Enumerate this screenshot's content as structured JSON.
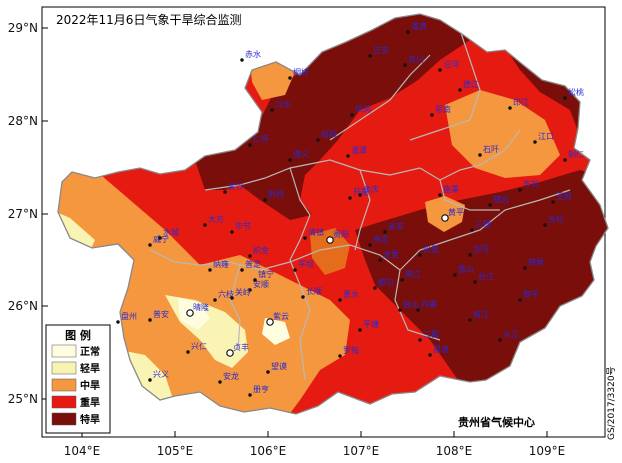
{
  "title": "2022年11月6日气象干旱综合监测",
  "colors": {
    "normal": "#fffde0",
    "light": "#f9f4b4",
    "moderate": "#f5973f",
    "severe": "#e51b12",
    "extreme": "#7a0e0a",
    "orange_dark": "#e56c1a",
    "border": "#b8b8b8",
    "city": "#2a2ad0"
  },
  "lat_labels": [
    "29°N",
    "28°N",
    "27°N",
    "26°N",
    "25°N"
  ],
  "lon_labels": [
    "104°E",
    "105°E",
    "106°E",
    "107°E",
    "108°E",
    "109°E"
  ],
  "legend": {
    "title": "图  例",
    "items": [
      {
        "label": "正常",
        "key": "normal"
      },
      {
        "label": "轻旱",
        "key": "light"
      },
      {
        "label": "中旱",
        "key": "moderate"
      },
      {
        "label": "重旱",
        "key": "severe"
      },
      {
        "label": "特旱",
        "key": "extreme"
      }
    ]
  },
  "credit": "贵州省气候中心",
  "approval_number": "GS/2017/3320号",
  "cities": [
    {
      "name": "赤水"
    },
    {
      "name": "桐梓"
    },
    {
      "name": "正安"
    },
    {
      "name": "道真"
    },
    {
      "name": "务川"
    },
    {
      "name": "沿河"
    },
    {
      "name": "习水"
    },
    {
      "name": "仁怀"
    },
    {
      "name": "遵义"
    },
    {
      "name": "绥阳"
    },
    {
      "name": "凤冈"
    },
    {
      "name": "湄潭"
    },
    {
      "name": "德江"
    },
    {
      "name": "思南"
    },
    {
      "name": "印江"
    },
    {
      "name": "江口"
    },
    {
      "name": "松桃"
    },
    {
      "name": "铜仁"
    },
    {
      "name": "石阡"
    },
    {
      "name": "金沙"
    },
    {
      "name": "黔西"
    },
    {
      "name": "余庆"
    },
    {
      "name": "施秉"
    },
    {
      "name": "镇远"
    },
    {
      "name": "岑巩"
    },
    {
      "name": "玉屏"
    },
    {
      "name": "黄平"
    },
    {
      "name": "三穗"
    },
    {
      "name": "天柱"
    },
    {
      "name": "威宁"
    },
    {
      "name": "大方"
    },
    {
      "name": "毕节"
    },
    {
      "name": "纳雍"
    },
    {
      "name": "织金"
    },
    {
      "name": "清镇"
    },
    {
      "name": "贵阳"
    },
    {
      "name": "开阳"
    },
    {
      "name": "瓮安"
    },
    {
      "name": "凯里"
    },
    {
      "name": "剑河"
    },
    {
      "name": "锦屏"
    },
    {
      "name": "水城"
    },
    {
      "name": "六枝"
    },
    {
      "name": "普定"
    },
    {
      "name": "安顺"
    },
    {
      "name": "平坝"
    },
    {
      "name": "龙里"
    },
    {
      "name": "贵定"
    },
    {
      "name": "麻江"
    },
    {
      "name": "丹寨"
    },
    {
      "name": "雷山"
    },
    {
      "name": "台江"
    },
    {
      "name": "黎平"
    },
    {
      "name": "盘州"
    },
    {
      "name": "普安"
    },
    {
      "name": "晴隆"
    },
    {
      "name": "关岭"
    },
    {
      "name": "镇宁"
    },
    {
      "name": "紫云"
    },
    {
      "name": "长顺"
    },
    {
      "name": "惠水"
    },
    {
      "name": "平塘"
    },
    {
      "name": "都匀"
    },
    {
      "name": "三都"
    },
    {
      "name": "榕江"
    },
    {
      "name": "从江"
    },
    {
      "name": "兴仁"
    },
    {
      "name": "贞丰"
    },
    {
      "name": "望谟"
    },
    {
      "name": "罗甸"
    },
    {
      "name": "独山"
    },
    {
      "name": "荔波"
    },
    {
      "name": "兴义"
    },
    {
      "name": "安龙"
    },
    {
      "name": "册亨"
    }
  ]
}
